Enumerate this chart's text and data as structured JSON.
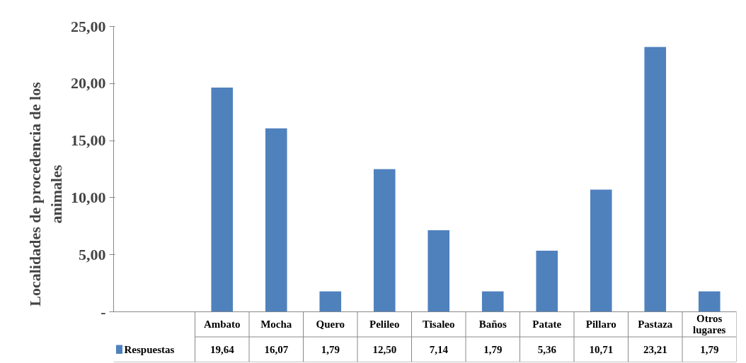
{
  "chart_data": {
    "type": "bar",
    "ylabel": "Localidades de procedencia de los animales",
    "categories": [
      "Ambato",
      "Mocha",
      "Quero",
      "Pelileo",
      "Tisaleo",
      "Baños",
      "Patate",
      "Pillaro",
      "Pastaza",
      "Otros lugares"
    ],
    "series": [
      {
        "name": "Respuestas",
        "color": "#4f81bd",
        "values": [
          19.64,
          16.07,
          1.79,
          12.5,
          7.14,
          1.79,
          5.36,
          10.71,
          23.21,
          1.79
        ],
        "value_labels": [
          "19,64",
          "16,07",
          "1,79",
          "12,50",
          "7,14",
          "1,79",
          "5,36",
          "10,71",
          "23,21",
          "1,79"
        ]
      }
    ],
    "ylim": [
      0,
      25
    ],
    "yticks": [
      {
        "value": 0,
        "label": "-"
      },
      {
        "value": 5,
        "label": "5,00"
      },
      {
        "value": 10,
        "label": "10,00"
      },
      {
        "value": 15,
        "label": "15,00"
      },
      {
        "value": 20,
        "label": "20,00"
      },
      {
        "value": 25,
        "label": "25,00"
      }
    ]
  }
}
